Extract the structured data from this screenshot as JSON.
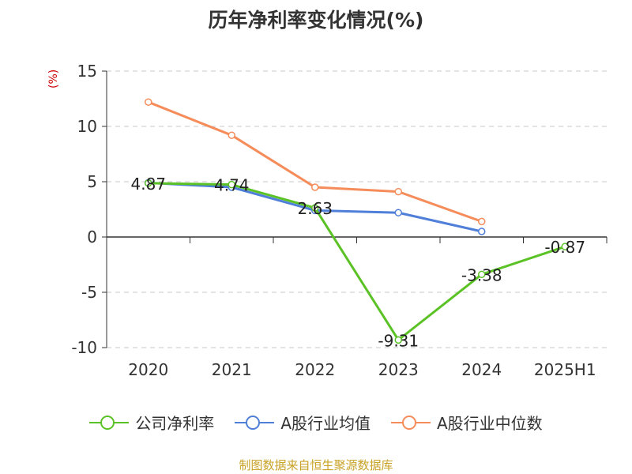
{
  "colors": {
    "net_margin": "#5bc225",
    "industry_avg": "#4f7fd9",
    "industry_median": "#f58c5a",
    "ylabel": "#cc0000",
    "source": "#c9a227"
  },
  "chart_data": {
    "type": "line",
    "title": "历年净利率变化情况(%)",
    "xlabel": "",
    "ylabel": "(%)",
    "categories": [
      "2020",
      "2021",
      "2022",
      "2023",
      "2024",
      "2025H1"
    ],
    "ylim": [
      -10,
      15
    ],
    "yticks": [
      15,
      10,
      5,
      0,
      -5,
      -10
    ],
    "grid": true,
    "legend_position": "bottom",
    "series": [
      {
        "name": "公司净利率",
        "color": "#5bc225",
        "values": [
          4.87,
          4.74,
          2.63,
          -9.31,
          -3.38,
          -0.87
        ],
        "labels": [
          "4.87",
          "4.74",
          "2.63",
          "-9.31",
          "-3.38",
          "-0.87"
        ]
      },
      {
        "name": "A股行业均值",
        "color": "#4f7fd9",
        "values": [
          4.9,
          4.5,
          2.4,
          2.2,
          0.5,
          null
        ]
      },
      {
        "name": "A股行业中位数",
        "color": "#f58c5a",
        "values": [
          12.2,
          9.2,
          4.5,
          4.1,
          1.4,
          null
        ]
      }
    ]
  },
  "footer": {
    "source": "制图数据来自恒生聚源数据库"
  }
}
